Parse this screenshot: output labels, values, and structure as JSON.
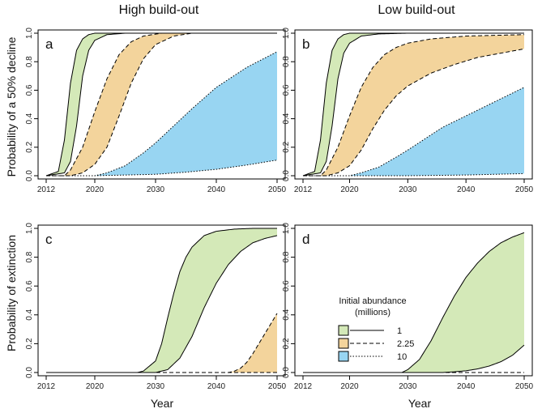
{
  "column_titles": [
    "High build-out",
    "Low build-out"
  ],
  "row_labels": [
    "Probability of a 50% decline",
    "Probability of extinction"
  ],
  "xlabel": "Year",
  "legend": {
    "title_line1": "Initial abundance",
    "title_line2": "(millions)",
    "entries": [
      {
        "label": "1",
        "color": "#d4e9b8",
        "line": "solid"
      },
      {
        "label": "2.25",
        "color": "#f3d49c",
        "line": "dashed"
      },
      {
        "label": "10",
        "color": "#98d5f2",
        "line": "dotted"
      }
    ]
  },
  "chart_data": [
    {
      "type": "area",
      "panel": "a",
      "column": "High build-out",
      "ylabel": "Probability of a 50% decline",
      "xlim": [
        2012,
        2050
      ],
      "ylim": [
        0,
        1
      ],
      "xticks": [
        2012,
        2020,
        2030,
        2040,
        2050
      ],
      "yticks": [
        0.0,
        0.2,
        0.4,
        0.6,
        0.8,
        1.0
      ],
      "series": [
        {
          "name": "1",
          "color": "#d4e9b8",
          "lower": [
            [
              2012,
              0
            ],
            [
              2015,
              0.02
            ],
            [
              2016,
              0.1
            ],
            [
              2017,
              0.35
            ],
            [
              2018,
              0.7
            ],
            [
              2019,
              0.88
            ],
            [
              2020,
              0.95
            ],
            [
              2022,
              0.99
            ],
            [
              2025,
              1.0
            ],
            [
              2050,
              1.0
            ]
          ],
          "upper": [
            [
              2012,
              0
            ],
            [
              2014,
              0.03
            ],
            [
              2015,
              0.25
            ],
            [
              2016,
              0.65
            ],
            [
              2017,
              0.88
            ],
            [
              2018,
              0.96
            ],
            [
              2019,
              0.99
            ],
            [
              2020,
              1.0
            ],
            [
              2050,
              1.0
            ]
          ]
        },
        {
          "name": "2.25",
          "color": "#f3d49c",
          "lower": [
            [
              2012,
              0
            ],
            [
              2016,
              0
            ],
            [
              2018,
              0.02
            ],
            [
              2020,
              0.08
            ],
            [
              2022,
              0.2
            ],
            [
              2024,
              0.42
            ],
            [
              2026,
              0.65
            ],
            [
              2028,
              0.82
            ],
            [
              2030,
              0.92
            ],
            [
              2033,
              0.98
            ],
            [
              2036,
              1.0
            ],
            [
              2050,
              1.0
            ]
          ],
          "upper": [
            [
              2012,
              0
            ],
            [
              2015,
              0
            ],
            [
              2016,
              0.04
            ],
            [
              2018,
              0.2
            ],
            [
              2020,
              0.45
            ],
            [
              2022,
              0.68
            ],
            [
              2024,
              0.85
            ],
            [
              2026,
              0.94
            ],
            [
              2028,
              0.98
            ],
            [
              2031,
              1.0
            ],
            [
              2050,
              1.0
            ]
          ]
        },
        {
          "name": "10",
          "color": "#98d5f2",
          "lower": [
            [
              2012,
              0
            ],
            [
              2020,
              0
            ],
            [
              2030,
              0.01
            ],
            [
              2035,
              0.025
            ],
            [
              2040,
              0.045
            ],
            [
              2045,
              0.075
            ],
            [
              2050,
              0.11
            ]
          ],
          "upper": [
            [
              2012,
              0
            ],
            [
              2020,
              0
            ],
            [
              2022,
              0.02
            ],
            [
              2025,
              0.07
            ],
            [
              2028,
              0.16
            ],
            [
              2030,
              0.23
            ],
            [
              2033,
              0.35
            ],
            [
              2036,
              0.47
            ],
            [
              2040,
              0.62
            ],
            [
              2045,
              0.76
            ],
            [
              2050,
              0.87
            ]
          ]
        }
      ]
    },
    {
      "type": "area",
      "panel": "b",
      "column": "Low build-out",
      "xlim": [
        2012,
        2050
      ],
      "ylim": [
        0,
        1
      ],
      "xticks": [
        2012,
        2020,
        2030,
        2040,
        2050
      ],
      "yticks": [
        0.0,
        0.2,
        0.4,
        0.6,
        0.8,
        1.0
      ],
      "series": [
        {
          "name": "1",
          "color": "#d4e9b8",
          "lower": [
            [
              2012,
              0
            ],
            [
              2015,
              0.02
            ],
            [
              2016,
              0.1
            ],
            [
              2017,
              0.35
            ],
            [
              2018,
              0.68
            ],
            [
              2019,
              0.86
            ],
            [
              2020,
              0.93
            ],
            [
              2022,
              0.98
            ],
            [
              2025,
              0.995
            ],
            [
              2030,
              1.0
            ],
            [
              2050,
              1.0
            ]
          ],
          "upper": [
            [
              2012,
              0
            ],
            [
              2014,
              0.03
            ],
            [
              2015,
              0.25
            ],
            [
              2016,
              0.65
            ],
            [
              2017,
              0.88
            ],
            [
              2018,
              0.96
            ],
            [
              2019,
              0.99
            ],
            [
              2020,
              1.0
            ],
            [
              2050,
              1.0
            ]
          ]
        },
        {
          "name": "2.25",
          "color": "#f3d49c",
          "lower": [
            [
              2012,
              0
            ],
            [
              2016,
              0
            ],
            [
              2018,
              0.02
            ],
            [
              2020,
              0.07
            ],
            [
              2022,
              0.18
            ],
            [
              2024,
              0.33
            ],
            [
              2026,
              0.46
            ],
            [
              2028,
              0.56
            ],
            [
              2030,
              0.63
            ],
            [
              2034,
              0.72
            ],
            [
              2038,
              0.78
            ],
            [
              2042,
              0.83
            ],
            [
              2046,
              0.86
            ],
            [
              2050,
              0.89
            ]
          ],
          "upper": [
            [
              2012,
              0
            ],
            [
              2015,
              0
            ],
            [
              2016,
              0.04
            ],
            [
              2018,
              0.2
            ],
            [
              2020,
              0.42
            ],
            [
              2022,
              0.62
            ],
            [
              2024,
              0.76
            ],
            [
              2026,
              0.85
            ],
            [
              2028,
              0.9
            ],
            [
              2030,
              0.93
            ],
            [
              2034,
              0.96
            ],
            [
              2040,
              0.98
            ],
            [
              2050,
              0.99
            ]
          ]
        },
        {
          "name": "10",
          "color": "#98d5f2",
          "lower": [
            [
              2012,
              0
            ],
            [
              2030,
              0
            ],
            [
              2040,
              0.005
            ],
            [
              2050,
              0.015
            ]
          ],
          "upper": [
            [
              2012,
              0
            ],
            [
              2020,
              0
            ],
            [
              2022,
              0.02
            ],
            [
              2025,
              0.06
            ],
            [
              2028,
              0.13
            ],
            [
              2030,
              0.18
            ],
            [
              2033,
              0.26
            ],
            [
              2036,
              0.34
            ],
            [
              2040,
              0.42
            ],
            [
              2045,
              0.52
            ],
            [
              2050,
              0.62
            ]
          ]
        }
      ]
    },
    {
      "type": "area",
      "panel": "c",
      "column": "High build-out",
      "ylabel": "Probability of extinction",
      "xlabel": "Year",
      "xlim": [
        2012,
        2050
      ],
      "ylim": [
        0,
        1
      ],
      "xticks": [
        2012,
        2020,
        2030,
        2040,
        2050
      ],
      "yticks": [
        0.0,
        0.2,
        0.4,
        0.6,
        0.8,
        1.0
      ],
      "series": [
        {
          "name": "1",
          "color": "#d4e9b8",
          "lower": [
            [
              2012,
              0
            ],
            [
              2030,
              0
            ],
            [
              2032,
              0.02
            ],
            [
              2034,
              0.1
            ],
            [
              2036,
              0.25
            ],
            [
              2038,
              0.45
            ],
            [
              2040,
              0.62
            ],
            [
              2042,
              0.75
            ],
            [
              2044,
              0.84
            ],
            [
              2046,
              0.9
            ],
            [
              2048,
              0.93
            ],
            [
              2050,
              0.95
            ]
          ],
          "upper": [
            [
              2012,
              0
            ],
            [
              2027,
              0
            ],
            [
              2028,
              0.01
            ],
            [
              2030,
              0.08
            ],
            [
              2031,
              0.2
            ],
            [
              2032,
              0.38
            ],
            [
              2033,
              0.55
            ],
            [
              2034,
              0.7
            ],
            [
              2035,
              0.8
            ],
            [
              2036,
              0.87
            ],
            [
              2038,
              0.95
            ],
            [
              2040,
              0.98
            ],
            [
              2043,
              0.995
            ],
            [
              2046,
              1.0
            ],
            [
              2050,
              1.0
            ]
          ]
        },
        {
          "name": "2.25",
          "color": "#f3d49c",
          "lower": [
            [
              2012,
              0
            ],
            [
              2050,
              0
            ]
          ],
          "upper": [
            [
              2012,
              0
            ],
            [
              2042,
              0
            ],
            [
              2043,
              0.01
            ],
            [
              2044,
              0.03
            ],
            [
              2045,
              0.07
            ],
            [
              2046,
              0.13
            ],
            [
              2047,
              0.2
            ],
            [
              2048,
              0.27
            ],
            [
              2049,
              0.34
            ],
            [
              2050,
              0.41
            ]
          ]
        }
      ]
    },
    {
      "type": "area",
      "panel": "d",
      "column": "Low build-out",
      "xlabel": "Year",
      "xlim": [
        2012,
        2050
      ],
      "ylim": [
        0,
        1
      ],
      "xticks": [
        2012,
        2020,
        2030,
        2040,
        2050
      ],
      "yticks": [
        0.0,
        0.2,
        0.4,
        0.6,
        0.8,
        1.0
      ],
      "series": [
        {
          "name": "1",
          "color": "#d4e9b8",
          "lower": [
            [
              2012,
              0
            ],
            [
              2036,
              0
            ],
            [
              2038,
              0.005
            ],
            [
              2040,
              0.012
            ],
            [
              2042,
              0.025
            ],
            [
              2044,
              0.045
            ],
            [
              2046,
              0.075
            ],
            [
              2048,
              0.12
            ],
            [
              2050,
              0.19
            ]
          ],
          "upper": [
            [
              2012,
              0
            ],
            [
              2029,
              0
            ],
            [
              2030,
              0.02
            ],
            [
              2032,
              0.09
            ],
            [
              2034,
              0.22
            ],
            [
              2036,
              0.38
            ],
            [
              2038,
              0.53
            ],
            [
              2040,
              0.66
            ],
            [
              2042,
              0.76
            ],
            [
              2044,
              0.84
            ],
            [
              2046,
              0.9
            ],
            [
              2048,
              0.94
            ],
            [
              2050,
              0.97
            ]
          ]
        },
        {
          "name": "2.25",
          "color": "#f3d49c",
          "lower": [
            [
              2012,
              0
            ],
            [
              2050,
              0
            ]
          ],
          "upper": [
            [
              2012,
              0
            ],
            [
              2050,
              0
            ]
          ]
        }
      ]
    }
  ]
}
